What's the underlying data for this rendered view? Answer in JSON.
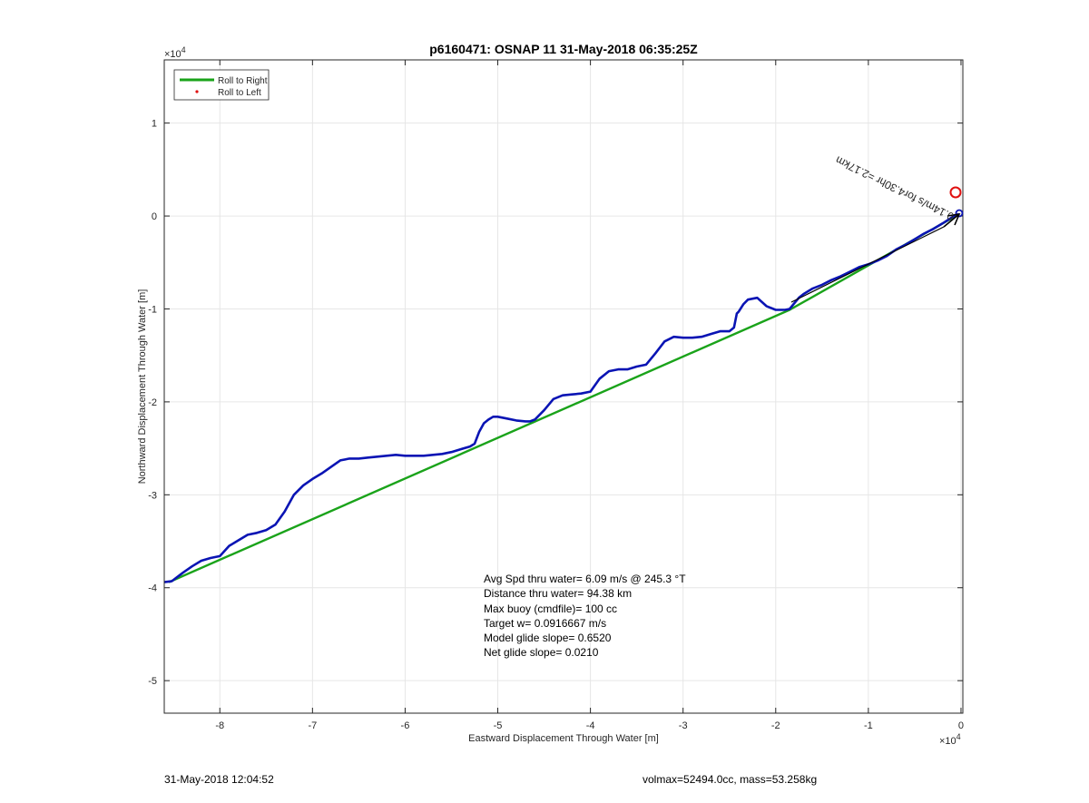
{
  "chart_data": {
    "type": "line",
    "title": "p6160471: OSNAP 11 31-May-2018 06:35:25Z",
    "xlabel": "Eastward Displacement Through Water [m]",
    "ylabel": "Northward Displacement Through Water [m]",
    "x_multiplier_label": "×10",
    "x_multiplier_exp": "4",
    "y_multiplier_label": "×10",
    "y_multiplier_exp": "4",
    "xlim": [
      -8.6,
      0.02
    ],
    "ylim": [
      -5.35,
      1.68
    ],
    "xticks": [
      -8,
      -7,
      -6,
      -5,
      -4,
      -3,
      -2,
      -1,
      0
    ],
    "yticks": [
      -5,
      -4,
      -3,
      -2,
      -1,
      0,
      1
    ],
    "xtick_labels": [
      "-8",
      "-7",
      "-6",
      "-5",
      "-4",
      "-3",
      "-2",
      "-1",
      "0"
    ],
    "ytick_labels": [
      "-5",
      "-4",
      "-3",
      "-2",
      "-1",
      "0",
      "1"
    ],
    "grid": true,
    "legend": {
      "placement": "top-left",
      "entries": [
        {
          "label": "Roll to Right",
          "color": "#1aa31a",
          "marker": "line"
        },
        {
          "label": "Roll to Left",
          "color": "#e01010",
          "marker": "dot"
        }
      ]
    },
    "series": [
      {
        "color": "#1aa31a",
        "x": [
          -8.55,
          -1.85,
          -0.02
        ],
        "y": [
          -3.94,
          -1.01,
          0.02
        ]
      },
      {
        "color": "#0a14b4",
        "x": [
          -8.6,
          -8.52,
          -8.4,
          -8.3,
          -8.2,
          -8.1,
          -8.0,
          -7.9,
          -7.8,
          -7.7,
          -7.6,
          -7.5,
          -7.4,
          -7.3,
          -7.2,
          -7.1,
          -7.0,
          -6.9,
          -6.8,
          -6.7,
          -6.6,
          -6.5,
          -6.4,
          -6.3,
          -6.2,
          -6.1,
          -6.0,
          -5.9,
          -5.8,
          -5.7,
          -5.6,
          -5.5,
          -5.4,
          -5.3,
          -5.25,
          -5.2,
          -5.15,
          -5.1,
          -5.05,
          -5.0,
          -4.9,
          -4.8,
          -4.7,
          -4.65,
          -4.6,
          -4.5,
          -4.4,
          -4.3,
          -4.2,
          -4.1,
          -4.0,
          -3.9,
          -3.8,
          -3.7,
          -3.6,
          -3.5,
          -3.4,
          -3.3,
          -3.2,
          -3.1,
          -3.0,
          -2.9,
          -2.8,
          -2.7,
          -2.6,
          -2.5,
          -2.45,
          -2.42,
          -2.4,
          -2.35,
          -2.3,
          -2.2,
          -2.1,
          -2.0,
          -1.9,
          -1.85,
          -1.8,
          -1.75,
          -1.7,
          -1.6,
          -1.5,
          -1.4,
          -1.3,
          -1.2,
          -1.1,
          -1.0,
          -0.9,
          -0.8,
          -0.7,
          -0.6,
          -0.5,
          -0.4,
          -0.3,
          -0.2,
          -0.12,
          -0.06,
          -0.02
        ],
        "y": [
          -3.94,
          -3.93,
          -3.84,
          -3.77,
          -3.71,
          -3.68,
          -3.66,
          -3.55,
          -3.49,
          -3.43,
          -3.41,
          -3.38,
          -3.32,
          -3.18,
          -3.0,
          -2.9,
          -2.83,
          -2.77,
          -2.7,
          -2.63,
          -2.61,
          -2.61,
          -2.6,
          -2.59,
          -2.58,
          -2.57,
          -2.58,
          -2.58,
          -2.58,
          -2.57,
          -2.56,
          -2.54,
          -2.51,
          -2.48,
          -2.45,
          -2.32,
          -2.23,
          -2.19,
          -2.16,
          -2.16,
          -2.18,
          -2.2,
          -2.21,
          -2.21,
          -2.19,
          -2.09,
          -1.97,
          -1.93,
          -1.92,
          -1.91,
          -1.89,
          -1.75,
          -1.67,
          -1.65,
          -1.65,
          -1.62,
          -1.6,
          -1.48,
          -1.35,
          -1.3,
          -1.31,
          -1.31,
          -1.3,
          -1.27,
          -1.24,
          -1.24,
          -1.2,
          -1.05,
          -1.03,
          -0.95,
          -0.9,
          -0.88,
          -0.97,
          -1.01,
          -1.01,
          -1.0,
          -0.94,
          -0.88,
          -0.84,
          -0.78,
          -0.74,
          -0.69,
          -0.65,
          -0.6,
          -0.55,
          -0.52,
          -0.48,
          -0.43,
          -0.36,
          -0.31,
          -0.25,
          -0.19,
          -0.14,
          -0.08,
          -0.03,
          0.01,
          0.02
        ]
      }
    ],
    "annotations": [
      {
        "text": "Avg Spd thru water=  6.09 m/s @ 245.3 °T"
      },
      {
        "text": "Distance thru water= 94.38 km"
      },
      {
        "text": "Max buoy (cmdfile)= 100 cc"
      },
      {
        "text": "Target w= 0.0916667 m/s"
      },
      {
        "text": "Model glide slope= 0.6520"
      },
      {
        "text": "Net glide slope= 0.0210"
      }
    ],
    "rotated_annotation": "0.14m/s for4.30hr =2.17km"
  },
  "footer": {
    "timestamp": "31-May-2018 12:04:52",
    "summary": "volmax=52494.0cc, mass=53.258kg"
  }
}
